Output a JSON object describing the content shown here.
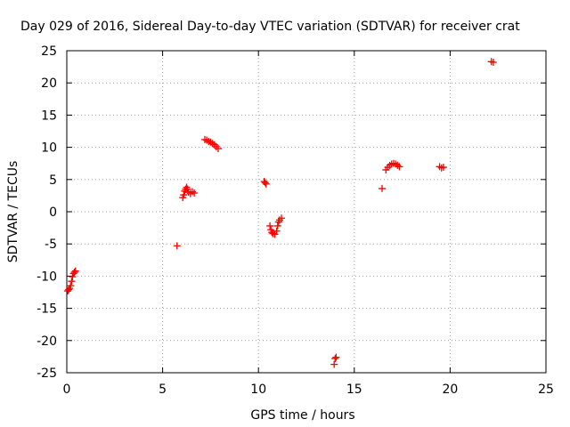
{
  "chart_data": {
    "type": "scatter",
    "title": "Day 029 of 2016, Sidereal Day-to-day VTEC variation (SDTVAR) for receiver crat",
    "xlabel": "GPS time / hours",
    "ylabel": "SDTVAR / TECUs",
    "xlim": [
      0,
      25
    ],
    "ylim": [
      -25,
      25
    ],
    "xticks": [
      0,
      5,
      10,
      15,
      20,
      25
    ],
    "yticks": [
      25,
      20,
      15,
      10,
      5,
      0,
      -5,
      -10,
      -15,
      -20,
      -25
    ],
    "grid": true,
    "marker": "+",
    "series": [
      {
        "name": "SDTVAR",
        "color": "#ff0000",
        "points": [
          [
            0.05,
            -12.3
          ],
          [
            0.1,
            -12.1
          ],
          [
            0.15,
            -11.9
          ],
          [
            0.2,
            -11.5
          ],
          [
            0.25,
            -10.8
          ],
          [
            0.3,
            -10.1
          ],
          [
            0.35,
            -9.6
          ],
          [
            0.4,
            -9.4
          ],
          [
            0.45,
            -9.2
          ],
          [
            5.75,
            -5.3
          ],
          [
            6.05,
            2.2
          ],
          [
            6.1,
            2.6
          ],
          [
            6.15,
            3.2
          ],
          [
            6.2,
            3.5
          ],
          [
            6.25,
            3.8
          ],
          [
            6.3,
            3.5
          ],
          [
            6.35,
            3.0
          ],
          [
            6.45,
            2.8
          ],
          [
            6.55,
            3.1
          ],
          [
            6.65,
            2.9
          ],
          [
            7.2,
            11.2
          ],
          [
            7.3,
            11.1
          ],
          [
            7.4,
            10.9
          ],
          [
            7.5,
            10.8
          ],
          [
            7.6,
            10.6
          ],
          [
            7.7,
            10.4
          ],
          [
            7.8,
            10.1
          ],
          [
            7.9,
            9.8
          ],
          [
            10.3,
            4.7
          ],
          [
            10.35,
            4.5
          ],
          [
            10.4,
            4.3
          ],
          [
            10.6,
            -2.2
          ],
          [
            10.65,
            -2.8
          ],
          [
            10.7,
            -3.2
          ],
          [
            10.75,
            -3.4
          ],
          [
            10.85,
            -3.5
          ],
          [
            10.95,
            -3.0
          ],
          [
            11.0,
            -2.2
          ],
          [
            11.05,
            -1.6
          ],
          [
            11.1,
            -1.3
          ],
          [
            11.2,
            -1.0
          ],
          [
            13.95,
            -23.7
          ],
          [
            14.0,
            -22.8
          ],
          [
            14.05,
            -22.6
          ],
          [
            16.45,
            3.6
          ],
          [
            16.65,
            6.5
          ],
          [
            16.75,
            6.9
          ],
          [
            16.85,
            7.2
          ],
          [
            16.95,
            7.4
          ],
          [
            17.05,
            7.5
          ],
          [
            17.15,
            7.4
          ],
          [
            17.25,
            7.2
          ],
          [
            17.35,
            7.0
          ],
          [
            19.45,
            7.0
          ],
          [
            19.55,
            6.8
          ],
          [
            19.65,
            6.9
          ],
          [
            22.15,
            23.3
          ],
          [
            22.25,
            23.2
          ]
        ]
      }
    ]
  }
}
